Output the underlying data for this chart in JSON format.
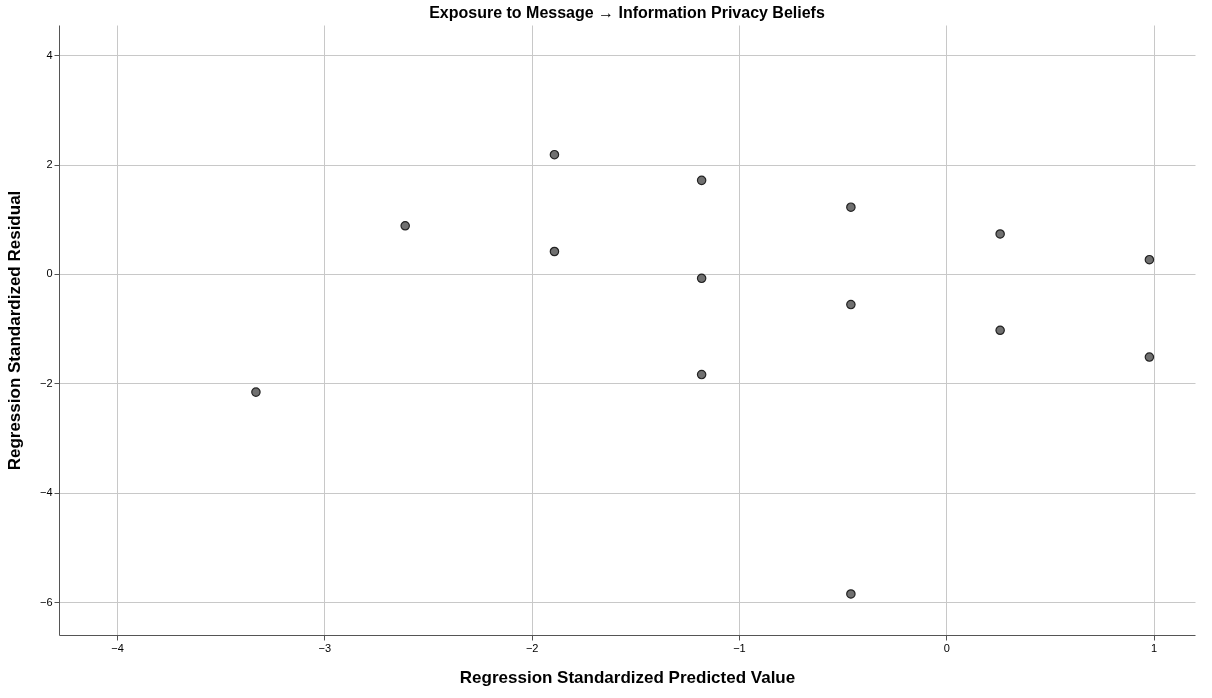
{
  "chart_data": {
    "type": "scatter",
    "title": "Exposure to Message → Information Privacy Beliefs",
    "xlabel": "Regression Standardized Predicted Value",
    "ylabel": "Regression Standardized Residual",
    "series": [
      {
        "color": "#707070",
        "x": [
          -3.33,
          -2.61,
          -1.89,
          -1.89,
          -1.18,
          -1.18,
          -1.18,
          -0.46,
          -0.46,
          -0.46,
          0.26,
          0.26,
          0.98,
          0.98
        ],
        "values": [
          -2.16,
          0.88,
          2.18,
          0.41,
          1.71,
          -0.08,
          -1.84,
          1.22,
          -0.56,
          -5.85,
          0.73,
          -1.03,
          0.26,
          -1.52
        ]
      }
    ],
    "xlim": [
      -4.28,
      1.2
    ],
    "xticks": [
      -4,
      -3,
      -2,
      -1,
      0,
      1
    ],
    "ylim": [
      -6.6,
      4.55
    ],
    "yticks": [
      -6,
      -4,
      -2,
      0,
      2,
      4
    ],
    "grid": true,
    "marker": "circle"
  }
}
